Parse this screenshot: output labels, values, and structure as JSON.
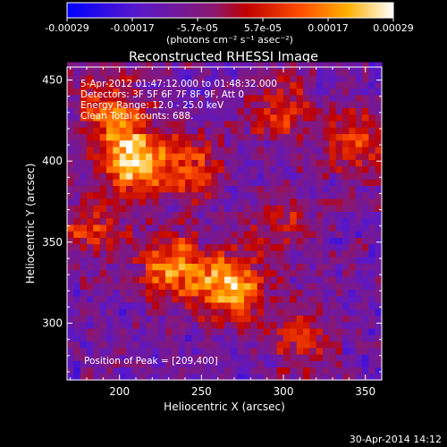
{
  "chart_data": {
    "type": "heatmap",
    "title": "Reconstructed RHESSI Image",
    "xlabel": "Heliocentric X (arcsec)",
    "ylabel": "Heliocentric Y (arcsec)",
    "xlim": [
      168,
      360
    ],
    "ylim": [
      265,
      458
    ],
    "x_ticks": [
      "200",
      "250",
      "300",
      "350"
    ],
    "x_tick_values": [
      200,
      250,
      300,
      350
    ],
    "y_ticks": [
      "300",
      "350",
      "400",
      "450"
    ],
    "y_tick_values": [
      300,
      350,
      400,
      450
    ],
    "colorbar": {
      "tick_labels": [
        "-0.00029",
        "-0.00017",
        "-5.7e-05",
        "5.7e-05",
        "0.00017",
        "0.00029"
      ],
      "range": [
        -0.00029,
        0.00029
      ],
      "unit_label": "(photons cm⁻² s⁻¹ asec⁻²)",
      "colormap": "blue-purple-red-orange-yellow-white"
    },
    "annotations": [
      "5-Apr-2012 01:47:12.000 to 01:48:32.000",
      "Detectors: 3F 5F 6F 7F 8F 9F, Att 0",
      "Energy Range: 12.0 - 25.0 keV",
      "Clean     Total counts: 688."
    ],
    "peak_label": "Position of Peak = [209,400]",
    "peak_position": [
      209,
      400
    ],
    "sources": [
      {
        "x": 209,
        "y": 400,
        "relative_intensity": 1.0
      },
      {
        "x": 268,
        "y": 322,
        "relative_intensity": 0.95
      },
      {
        "x": 232,
        "y": 335,
        "relative_intensity": 0.7
      },
      {
        "x": 196,
        "y": 430,
        "relative_intensity": 0.6
      },
      {
        "x": 245,
        "y": 395,
        "relative_intensity": 0.55
      },
      {
        "x": 298,
        "y": 432,
        "relative_intensity": 0.5
      },
      {
        "x": 345,
        "y": 410,
        "relative_intensity": 0.5
      },
      {
        "x": 182,
        "y": 360,
        "relative_intensity": 0.45
      },
      {
        "x": 300,
        "y": 360,
        "relative_intensity": 0.4
      },
      {
        "x": 310,
        "y": 290,
        "relative_intensity": 0.4
      }
    ],
    "grid": false
  },
  "footer": {
    "timestamp": "30-Apr-2014 14:12"
  }
}
